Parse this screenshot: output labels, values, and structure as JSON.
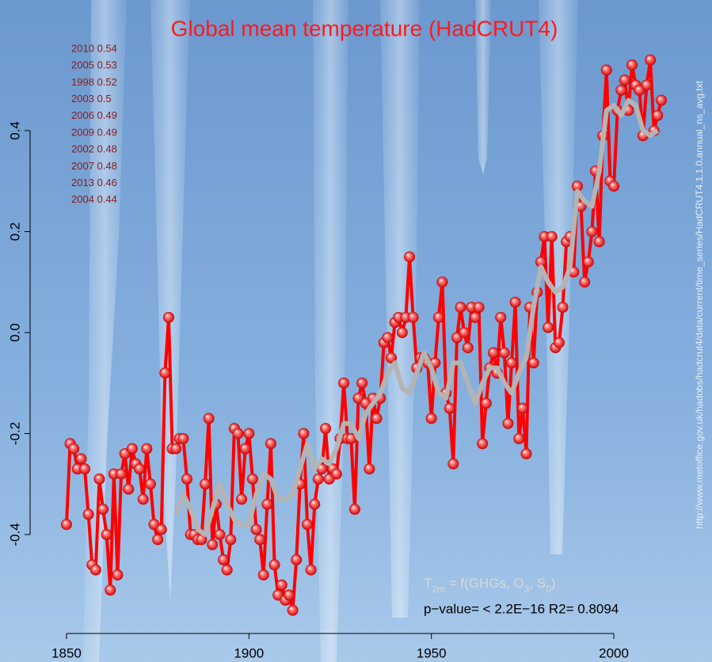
{
  "chart_data": {
    "type": "line",
    "title": "Global mean temperature (HadCRUT4)",
    "annotations": [
      "2010 0.54",
      "2005 0.53",
      "1998 0.52",
      "2003 0.5",
      "2006 0.49",
      "2009 0.49",
      "2002 0.48",
      "2007 0.48",
      "2013 0.46",
      "2004 0.44"
    ],
    "formula": [
      "T",
      "2m",
      " = f(GHGs, O",
      "3",
      ", S",
      "0",
      ")"
    ],
    "stats": "p−value= < 2.2E−16 R2= 0.8094",
    "source": "http://www.metoffice.gov.uk/hadobs/hadcrut4/data/current/time_series/HadCRUT4.1.1.0.annual_ns_avg.txt",
    "xlim": [
      1840,
      2021
    ],
    "ylim": [
      -0.596,
      0.643
    ],
    "xticks": [
      1850,
      1900,
      1950,
      2000
    ],
    "yticks": [
      -0.4,
      -0.2,
      {
        "value": 0,
        "label": "0.0"
      },
      0.2,
      0.4
    ],
    "series": [
      {
        "color": "#ff0000",
        "x": [
          1850,
          1851,
          1852,
          1853,
          1854,
          1855,
          1856,
          1857,
          1858,
          1859,
          1860,
          1861,
          1862,
          1863,
          1864,
          1865,
          1866,
          1867,
          1868,
          1869,
          1870,
          1871,
          1872,
          1873,
          1874,
          1875,
          1876,
          1877,
          1878,
          1879,
          1880,
          1881,
          1882,
          1883,
          1884,
          1885,
          1886,
          1887,
          1888,
          1889,
          1890,
          1891,
          1892,
          1893,
          1894,
          1895,
          1896,
          1897,
          1898,
          1899,
          1900,
          1901,
          1902,
          1903,
          1904,
          1905,
          1906,
          1907,
          1908,
          1909,
          1910,
          1911,
          1912,
          1913,
          1914,
          1915,
          1916,
          1917,
          1918,
          1919,
          1920,
          1921,
          1922,
          1923,
          1924,
          1925,
          1926,
          1927,
          1928,
          1929,
          1930,
          1931,
          1932,
          1933,
          1934,
          1935,
          1936,
          1937,
          1938,
          1939,
          1940,
          1941,
          1942,
          1943,
          1944,
          1945,
          1946,
          1947,
          1948,
          1949,
          1950,
          1951,
          1952,
          1953,
          1954,
          1955,
          1956,
          1957,
          1958,
          1959,
          1960,
          1961,
          1962,
          1963,
          1964,
          1965,
          1966,
          1967,
          1968,
          1969,
          1970,
          1971,
          1972,
          1973,
          1974,
          1975,
          1976,
          1977,
          1978,
          1979,
          1980,
          1981,
          1982,
          1983,
          1984,
          1985,
          1986,
          1987,
          1988,
          1989,
          1990,
          1991,
          1992,
          1993,
          1994,
          1995,
          1996,
          1997,
          1998,
          1999,
          2000,
          2001,
          2002,
          2003,
          2004,
          2005,
          2006,
          2007,
          2008,
          2009,
          2010,
          2011,
          2012,
          2013
        ],
        "values": [
          -0.38,
          -0.22,
          -0.23,
          -0.27,
          -0.25,
          -0.27,
          -0.36,
          -0.46,
          -0.47,
          -0.29,
          -0.35,
          -0.4,
          -0.51,
          -0.28,
          -0.48,
          -0.28,
          -0.24,
          -0.31,
          -0.23,
          -0.26,
          -0.27,
          -0.33,
          -0.23,
          -0.3,
          -0.38,
          -0.41,
          -0.39,
          -0.08,
          0.03,
          -0.23,
          -0.23,
          -0.21,
          -0.21,
          -0.29,
          -0.4,
          -0.4,
          -0.41,
          -0.41,
          -0.3,
          -0.17,
          -0.42,
          -0.34,
          -0.4,
          -0.45,
          -0.47,
          -0.41,
          -0.19,
          -0.2,
          -0.33,
          -0.23,
          -0.2,
          -0.29,
          -0.39,
          -0.41,
          -0.48,
          -0.34,
          -0.22,
          -0.46,
          -0.52,
          -0.5,
          -0.53,
          -0.52,
          -0.55,
          -0.45,
          -0.3,
          -0.2,
          -0.38,
          -0.47,
          -0.34,
          -0.29,
          -0.27,
          -0.19,
          -0.29,
          -0.27,
          -0.28,
          -0.21,
          -0.1,
          -0.21,
          -0.21,
          -0.35,
          -0.13,
          -0.1,
          -0.14,
          -0.27,
          -0.13,
          -0.17,
          -0.13,
          -0.02,
          -0.01,
          -0.05,
          0.02,
          0.03,
          0.0,
          0.03,
          0.15,
          0.03,
          -0.07,
          -0.05,
          -0.05,
          -0.06,
          -0.17,
          -0.06,
          0.03,
          0.1,
          -0.12,
          -0.15,
          -0.26,
          -0.01,
          0.05,
          0.0,
          -0.03,
          0.05,
          0.03,
          0.05,
          -0.22,
          -0.14,
          -0.07,
          -0.04,
          -0.08,
          0.03,
          -0.04,
          -0.18,
          -0.06,
          0.06,
          -0.21,
          -0.15,
          -0.24,
          0.05,
          -0.06,
          0.08,
          0.14,
          0.19,
          0.01,
          0.19,
          -0.03,
          -0.02,
          0.05,
          0.18,
          0.19,
          0.12,
          0.29,
          0.25,
          0.1,
          0.14,
          0.2,
          0.32,
          0.18,
          0.39,
          0.52,
          0.3,
          0.29,
          0.44,
          0.48,
          0.5,
          0.44,
          0.53,
          0.49,
          0.48,
          0.39,
          0.49,
          0.54,
          0.4,
          0.43,
          0.46
        ]
      },
      {
        "color": "#b4b4b4",
        "x": [
          1880,
          1882,
          1884,
          1886,
          1888,
          1890,
          1892,
          1894,
          1896,
          1898,
          1900,
          1902,
          1904,
          1906,
          1908,
          1910,
          1912,
          1914,
          1916,
          1918,
          1920,
          1922,
          1924,
          1926,
          1928,
          1930,
          1932,
          1934,
          1936,
          1938,
          1940,
          1942,
          1944,
          1946,
          1948,
          1950,
          1952,
          1954,
          1956,
          1958,
          1960,
          1962,
          1964,
          1966,
          1968,
          1970,
          1972,
          1974,
          1976,
          1978,
          1980,
          1982,
          1984,
          1986,
          1988,
          1990,
          1992,
          1994,
          1996,
          1998,
          2000,
          2002,
          2004,
          2006,
          2008,
          2010,
          2012
        ],
        "values": [
          -0.36,
          -0.32,
          -0.35,
          -0.39,
          -0.4,
          -0.35,
          -0.3,
          -0.34,
          -0.37,
          -0.38,
          -0.38,
          -0.32,
          -0.28,
          -0.29,
          -0.33,
          -0.33,
          -0.32,
          -0.27,
          -0.22,
          -0.27,
          -0.25,
          -0.26,
          -0.23,
          -0.18,
          -0.18,
          -0.21,
          -0.16,
          -0.14,
          -0.12,
          -0.08,
          -0.06,
          -0.11,
          -0.12,
          -0.08,
          -0.04,
          -0.07,
          -0.12,
          -0.13,
          -0.06,
          -0.06,
          -0.1,
          -0.14,
          -0.1,
          -0.07,
          -0.07,
          -0.1,
          -0.12,
          -0.08,
          -0.05,
          0.05,
          0.13,
          0.1,
          0.08,
          0.09,
          0.13,
          0.28,
          0.26,
          0.25,
          0.32,
          0.44,
          0.45,
          0.43,
          0.46,
          0.45,
          0.4,
          0.39,
          0.4
        ]
      }
    ]
  }
}
